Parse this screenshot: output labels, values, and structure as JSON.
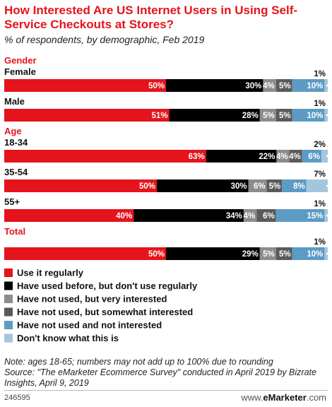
{
  "header": {
    "title": "How Interested Are US Internet Users in Using Self-Service Checkouts at Stores?",
    "subtitle": "% of respondents, by demographic, Feb 2019"
  },
  "chart_data": {
    "type": "bar",
    "orientation": "horizontal",
    "stacked": true,
    "value_unit": "%",
    "series": [
      {
        "name": "Use it regularly",
        "color": "#e5131b"
      },
      {
        "name": "Have used before, but don't use regularly",
        "color": "#000000"
      },
      {
        "name": "Have not used, but very interested",
        "color": "#8c8c8c"
      },
      {
        "name": "Have not used, but somewhat interested",
        "color": "#5a5a5a"
      },
      {
        "name": "Have not used and not interested",
        "color": "#5b9bc4"
      },
      {
        "name": "Don't know what this is",
        "color": "#a4c6dc"
      }
    ],
    "groups": [
      {
        "name": "Gender",
        "rows": [
          {
            "label": "Female",
            "values": [
              50,
              30,
              4,
              5,
              10,
              1
            ],
            "labels": [
              "50%",
              "30%",
              "4%",
              "5%",
              "10%",
              "1%"
            ]
          },
          {
            "label": "Male",
            "values": [
              51,
              28,
              5,
              5,
              10,
              1
            ],
            "labels": [
              "51%",
              "28%",
              "5%",
              "5%",
              "10%",
              "1%"
            ]
          }
        ]
      },
      {
        "name": "Age",
        "rows": [
          {
            "label": "18-34",
            "values": [
              63,
              22,
              4,
              4,
              6,
              2
            ],
            "labels": [
              "63%",
              "22%",
              "4%",
              "4%",
              "6%",
              "2%"
            ]
          },
          {
            "label": "35-54",
            "values": [
              50,
              30,
              6,
              5,
              8,
              7
            ],
            "labels": [
              "50%",
              "30%",
              "6%",
              "5%",
              "8%",
              "7%"
            ]
          },
          {
            "label": "55+",
            "values": [
              40,
              34,
              4,
              6,
              15,
              1
            ],
            "labels": [
              "40%",
              "34%",
              "4%",
              "6%",
              "15%",
              "1%"
            ]
          }
        ]
      },
      {
        "name": "Total",
        "rows": [
          {
            "label": "",
            "values": [
              50,
              29,
              5,
              5,
              10,
              1
            ],
            "labels": [
              "50%",
              "29%",
              "5%",
              "5%",
              "10%",
              "1%"
            ]
          }
        ]
      }
    ],
    "legend_position": "bottom"
  },
  "footer": {
    "note": "Note: ages 18-65; numbers may not add up to 100% due to rounding",
    "source": "Source: \"The eMarketer Ecommerce Survey\" conducted in April 2019 by Bizrate Insights, April 9, 2019",
    "chart_id": "246595",
    "brand_prefix": "www.",
    "brand_name": "eMarketer",
    "brand_suffix": ".com"
  }
}
